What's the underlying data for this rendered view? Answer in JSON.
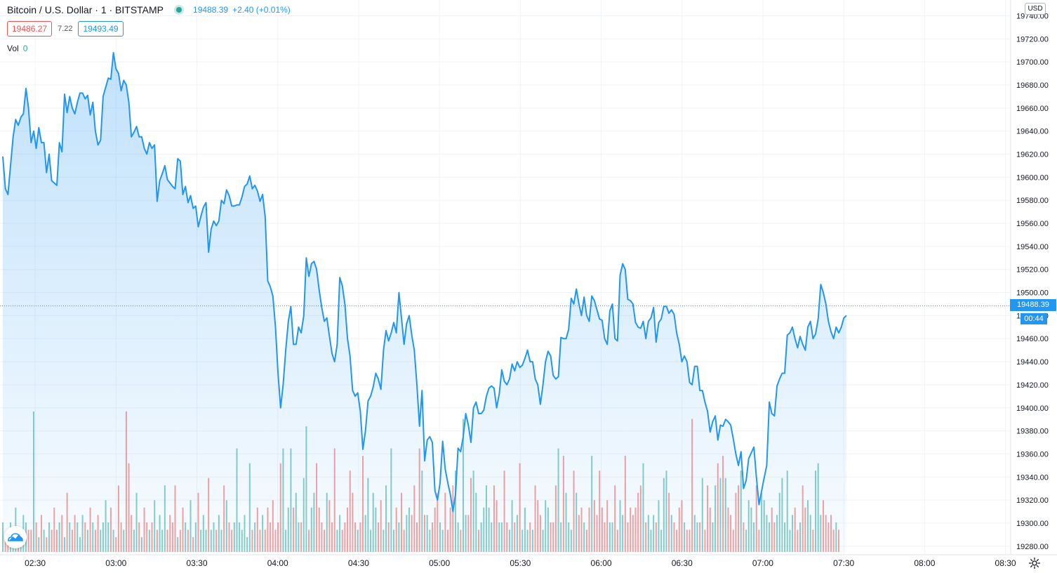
{
  "header": {
    "symbol_title": "Bitcoin / U.S. Dollar · 1 · BITSTAMP",
    "last_price": "19488.39",
    "change": "+2.40 (+0.01%)",
    "status_dot_color": "#26a69a"
  },
  "quote": {
    "bid": "19486.27",
    "spread": "7.22",
    "ask": "19493.49"
  },
  "volume_legend": {
    "label": "Vol",
    "value": "0"
  },
  "price_axis": {
    "currency": "USD",
    "last_price_label": "19488.39",
    "countdown": "00:44",
    "tick_labels": [
      "19740.00",
      "19720.00",
      "19700.00",
      "19680.00",
      "19660.00",
      "19640.00",
      "19620.00",
      "19600.00",
      "19580.00",
      "19560.00",
      "19540.00",
      "19520.00",
      "19500.00",
      "19480.00",
      "19460.00",
      "19440.00",
      "19420.00",
      "19400.00",
      "19380.00",
      "19360.00",
      "19340.00",
      "19320.00",
      "19300.00",
      "19280.00"
    ]
  },
  "colors": {
    "line": "#2196f3",
    "area_top": "#2196f3",
    "volume_up": "#26a69a",
    "volume_down": "#ef5350",
    "grid": "#f0f3fa",
    "last_price": "#2196f3"
  },
  "icons": {
    "settings": "gear-icon",
    "logo": "tradingview-cloud-icon"
  },
  "chart_data": {
    "type": "area",
    "x_start": "02:18",
    "x_end": "07:31",
    "x_step_minutes": 1,
    "x_tick_labels": [
      "02:30",
      "03:00",
      "03:30",
      "04:00",
      "04:30",
      "05:00",
      "05:30",
      "06:00",
      "06:30",
      "07:00",
      "07:30",
      "08:00",
      "08:30"
    ],
    "ylim": [
      19275,
      19747
    ],
    "grid": true,
    "last_price_line": 19488.39,
    "series": [
      {
        "values": [
          19618,
          19590,
          19585,
          19610,
          19635,
          19650,
          19645,
          19652,
          19655,
          19677,
          19660,
          19630,
          19640,
          19625,
          19643,
          19630,
          19630,
          19604,
          19620,
          19597,
          19595,
          19593,
          19630,
          19622,
          19672,
          19656,
          19670,
          19660,
          19655,
          19665,
          19673,
          19673,
          19668,
          19671,
          19654,
          19665,
          19640,
          19628,
          19632,
          19670,
          19678,
          19686,
          19685,
          19708,
          19694,
          19690,
          19675,
          19684,
          19680,
          19665,
          19635,
          19639,
          19644,
          19635,
          19635,
          19625,
          19620,
          19630,
          19625,
          19628,
          19579,
          19597,
          19603,
          19610,
          19598,
          19595,
          19592,
          19590,
          19616,
          19614,
          19585,
          19592,
          19578,
          19584,
          19573,
          19575,
          19557,
          19566,
          19574,
          19578,
          19535,
          19555,
          19562,
          19558,
          19562,
          19580,
          19577,
          19589,
          19584,
          19575,
          19575,
          19576,
          19576,
          19583,
          19592,
          19594,
          19601,
          19590,
          19593,
          19588,
          19579,
          19585,
          19566,
          19510,
          19505,
          19497,
          19470,
          19430,
          19400,
          19420,
          19450,
          19475,
          19488,
          19455,
          19455,
          19470,
          19465,
          19480,
          19530,
          19514,
          19525,
          19527,
          19520,
          19502,
          19487,
          19475,
          19478,
          19462,
          19447,
          19440,
          19455,
          19513,
          19506,
          19490,
          19460,
          19445,
          19415,
          19410,
          19413,
          19397,
          19364,
          19380,
          19406,
          19410,
          19418,
          19430,
          19425,
          19416,
          19450,
          19467,
          19458,
          19465,
          19474,
          19465,
          19500,
          19478,
          19455,
          19473,
          19480,
          19463,
          19450,
          19420,
          19384,
          19415,
          19354,
          19372,
          19375,
          19370,
          19328,
          19320,
          19335,
          19371,
          19347,
          19335,
          19325,
          19310,
          19325,
          19365,
          19362,
          19375,
          19395,
          19385,
          19370,
          19400,
          19405,
          19395,
          19395,
          19398,
          19410,
          19417,
          19419,
          19417,
          19400,
          19412,
          19433,
          19423,
          19420,
          19425,
          19438,
          19432,
          19440,
          19435,
          19437,
          19443,
          19450,
          19440,
          19440,
          19425,
          19420,
          19403,
          19420,
          19440,
          19449,
          19445,
          19428,
          19425,
          19427,
          19461,
          19460,
          19460,
          19468,
          19495,
          19490,
          19503,
          19490,
          19480,
          19496,
          19480,
          19475,
          19497,
          19493,
          19485,
          19477,
          19476,
          19460,
          19455,
          19484,
          19490,
          19460,
          19458,
          19515,
          19525,
          19520,
          19494,
          19493,
          19490,
          19474,
          19470,
          19469,
          19475,
          19460,
          19475,
          19478,
          19487,
          19457,
          19474,
          19477,
          19488,
          19488,
          19482,
          19485,
          19481,
          19465,
          19455,
          19440,
          19445,
          19440,
          19422,
          19420,
          19436,
          19436,
          19415,
          19415,
          19405,
          19397,
          19379,
          19388,
          19393,
          19372,
          19385,
          19384,
          19390,
          19388,
          19385,
          19373,
          19360,
          19350,
          19362,
          19330,
          19337,
          19356,
          19361,
          19366,
          19340,
          19316,
          19328,
          19339,
          19350,
          19405,
          19395,
          19393,
          19419,
          19425,
          19430,
          19430,
          19463,
          19465,
          19470,
          19460,
          19452,
          19462,
          19455,
          19450,
          19470,
          19475,
          19460,
          19464,
          19477,
          19507,
          19500,
          19490,
          19475,
          19466,
          19460,
          19470,
          19465,
          19470,
          19478,
          19480
        ]
      },
      {
        "name": "Vol",
        "values": [
          4,
          2,
          3,
          4,
          2,
          6,
          2,
          3,
          5,
          4,
          3,
          3,
          19,
          4,
          2,
          5,
          3,
          2,
          4,
          3,
          6,
          3,
          4,
          5,
          2,
          8,
          4,
          3,
          5,
          4,
          2,
          5,
          4,
          3,
          6,
          4,
          3,
          5,
          3,
          4,
          7,
          4,
          6,
          3,
          2,
          9,
          4,
          3,
          19,
          12,
          5,
          3,
          8,
          4,
          2,
          6,
          4,
          3,
          4,
          7,
          3,
          5,
          3,
          9,
          3,
          5,
          4,
          9,
          2,
          3,
          6,
          4,
          3,
          7,
          2,
          4,
          8,
          3,
          5,
          3,
          10,
          3,
          4,
          3,
          5,
          3,
          9,
          7,
          4,
          3,
          4,
          14,
          4,
          3,
          5,
          2,
          12,
          3,
          4,
          6,
          3,
          5,
          3,
          6,
          4,
          7,
          3,
          4,
          12,
          14,
          3,
          6,
          14,
          6,
          8,
          4,
          4,
          10,
          17,
          3,
          6,
          8,
          12,
          6,
          4,
          3,
          8,
          7,
          4,
          14,
          3,
          5,
          3,
          4,
          6,
          11,
          8,
          4,
          3,
          4,
          13,
          5,
          10,
          3,
          8,
          6,
          4,
          7,
          3,
          9,
          4,
          14,
          3,
          6,
          4,
          8,
          3,
          5,
          6,
          5,
          9,
          4,
          14,
          11,
          5,
          5,
          3,
          4,
          6,
          8,
          4,
          3,
          8,
          3,
          6,
          9,
          11,
          4,
          3,
          18,
          5,
          5,
          10,
          11,
          8,
          3,
          4,
          6,
          9,
          6,
          4,
          9,
          7,
          4,
          4,
          11,
          4,
          3,
          7,
          4,
          5,
          12,
          3,
          6,
          3,
          4,
          3,
          9,
          7,
          5,
          3,
          7,
          6,
          4,
          4,
          9,
          14,
          4,
          13,
          8,
          4,
          3,
          11,
          8,
          5,
          6,
          4,
          3,
          6,
          13,
          7,
          5,
          11,
          6,
          4,
          7,
          4,
          4,
          9,
          3,
          7,
          5,
          13,
          4,
          6,
          5,
          6,
          8,
          9,
          12,
          4,
          5,
          3,
          5,
          4,
          7,
          3,
          10,
          11,
          8,
          5,
          4,
          3,
          6,
          7,
          4,
          3,
          3,
          18,
          5,
          4,
          4,
          10,
          3,
          9,
          6,
          4,
          9,
          12,
          10,
          13,
          10,
          6,
          5,
          3,
          8,
          9,
          11,
          4,
          3,
          7,
          6,
          4,
          9,
          3,
          8,
          7,
          5,
          4,
          6,
          4,
          5,
          8,
          10,
          4,
          11,
          3,
          5,
          6,
          3,
          4,
          9,
          6,
          7,
          5,
          3,
          11,
          12,
          5,
          7,
          5,
          4,
          5,
          3,
          4,
          3
        ]
      }
    ]
  }
}
